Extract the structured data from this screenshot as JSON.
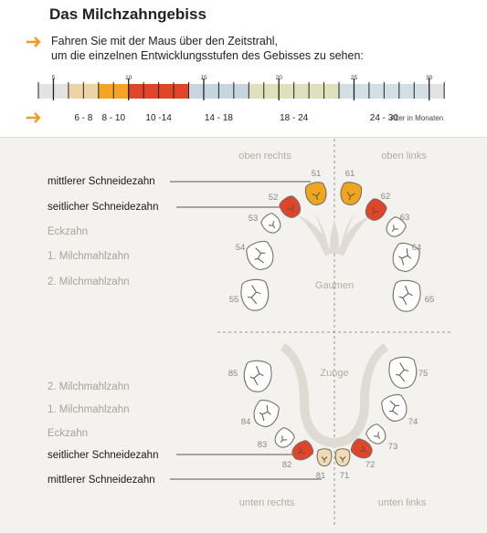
{
  "title": "Das Milchzahngebiss",
  "instructions": {
    "line1": "Fahren Sie mit der Maus über den Zeitstrahl,",
    "line2": "um die einzelnen Entwicklungsstufen des Gebisses zu sehen:"
  },
  "timeline": {
    "scale_labels": [
      "5",
      "10",
      "15",
      "20",
      "25",
      "30"
    ],
    "segments": [
      {
        "label": "6 - 8",
        "from": 6,
        "to": 8,
        "color": "#ecd4a6"
      },
      {
        "label": "8 - 10",
        "from": 8,
        "to": 10,
        "color": "#f4a623"
      },
      {
        "label": "10 -14",
        "from": 10,
        "to": 14,
        "color": "#e0452a"
      },
      {
        "label": "14 - 18",
        "from": 14,
        "to": 18,
        "color": "#c7d5de"
      },
      {
        "label": "18 - 24",
        "from": 18,
        "to": 24,
        "color": "#dfe1bd"
      },
      {
        "label": "24 - 30",
        "from": 24,
        "to": 30,
        "color": "#d3dfe5"
      }
    ],
    "age_unit_label": "Alter in Monaten"
  },
  "diagram": {
    "upper_right_label": "oben rechts",
    "upper_left_label": "oben links",
    "lower_right_label": "unten rechts",
    "lower_left_label": "unten links",
    "palate_label": "Gaumen",
    "tongue_label": "Zunge",
    "upper_tooth_types": [
      "mittlerer Schneidezahn",
      "seitlicher Schneidezahn",
      "Eckzahn",
      "1. Milchmahlzahn",
      "2. Milchmahlzahn"
    ],
    "lower_tooth_types": [
      "2. Milchmahlzahn",
      "1. Milchmahlzahn",
      "Eckzahn",
      "seitlicher Schneidezahn",
      "mittlerer Schneidezahn"
    ],
    "upper_teeth": [
      {
        "num": "51",
        "state": "yellow"
      },
      {
        "num": "61",
        "state": "yellow"
      },
      {
        "num": "52",
        "state": "red"
      },
      {
        "num": "62",
        "state": "red"
      },
      {
        "num": "53",
        "state": "outline"
      },
      {
        "num": "63",
        "state": "outline"
      },
      {
        "num": "54",
        "state": "outline"
      },
      {
        "num": "64",
        "state": "outline"
      },
      {
        "num": "55",
        "state": "outline"
      },
      {
        "num": "65",
        "state": "outline"
      }
    ],
    "lower_teeth": [
      {
        "num": "85",
        "state": "outline"
      },
      {
        "num": "75",
        "state": "outline"
      },
      {
        "num": "84",
        "state": "outline"
      },
      {
        "num": "74",
        "state": "outline"
      },
      {
        "num": "83",
        "state": "outline"
      },
      {
        "num": "73",
        "state": "outline"
      },
      {
        "num": "82",
        "state": "red"
      },
      {
        "num": "72",
        "state": "red"
      },
      {
        "num": "81",
        "state": "beige"
      },
      {
        "num": "71",
        "state": "beige"
      }
    ],
    "colors": {
      "yellow": "#f0a51f",
      "red": "#e0452a",
      "beige": "#f0dcb4",
      "outline": "#ffffff",
      "stroke": "#7a7067",
      "accent": "#f29b1e"
    }
  }
}
